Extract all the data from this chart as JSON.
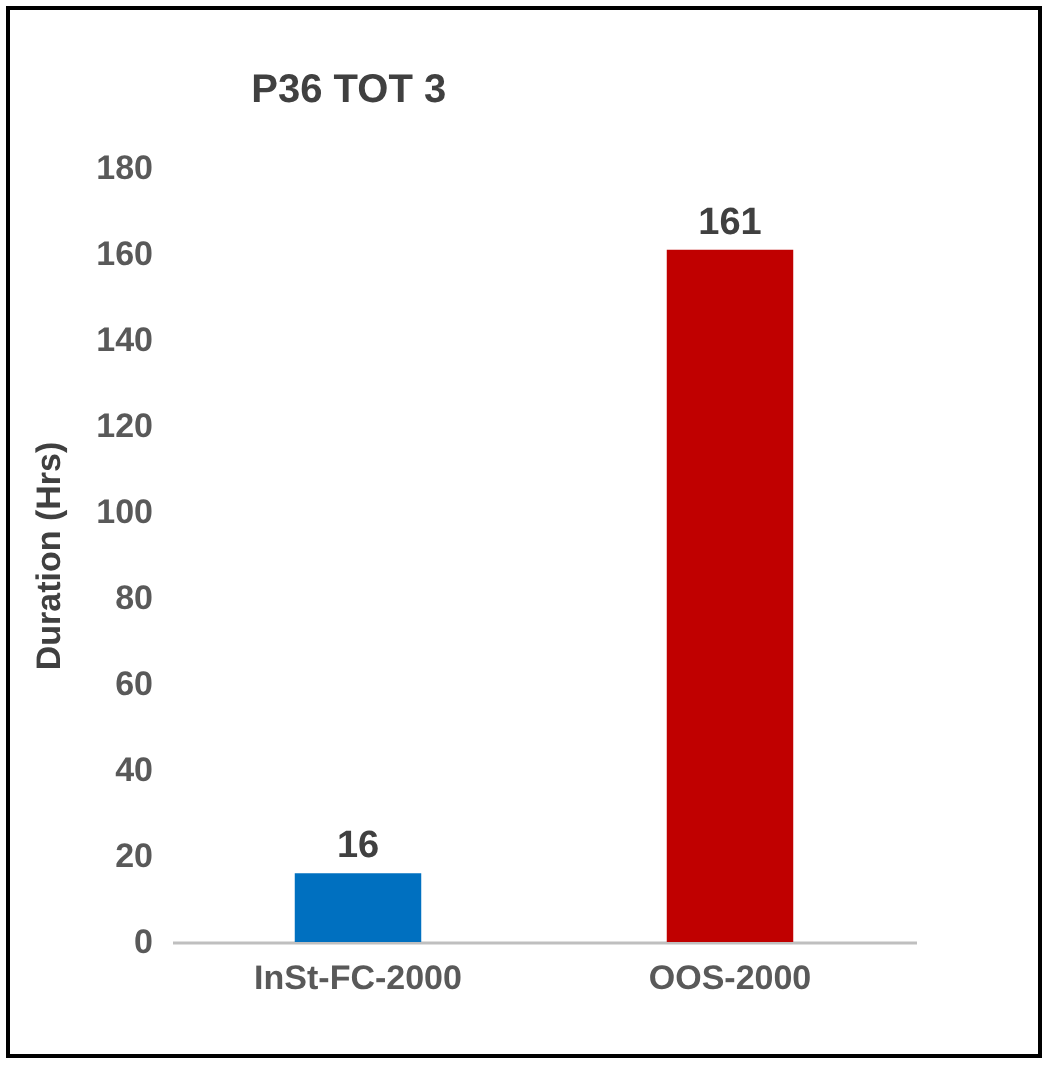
{
  "chart_data": {
    "type": "bar",
    "title": "P36 TOT 3",
    "ylabel": "Duration (Hrs)",
    "categories": [
      "InSt-FC-2000",
      "OOS-2000"
    ],
    "values": [
      16,
      161
    ],
    "colors": [
      "#0070c0",
      "#c00000"
    ],
    "ylim": [
      0,
      180
    ],
    "yticks": [
      0,
      20,
      40,
      60,
      80,
      100,
      120,
      140,
      160,
      180
    ],
    "data_labels": true
  }
}
